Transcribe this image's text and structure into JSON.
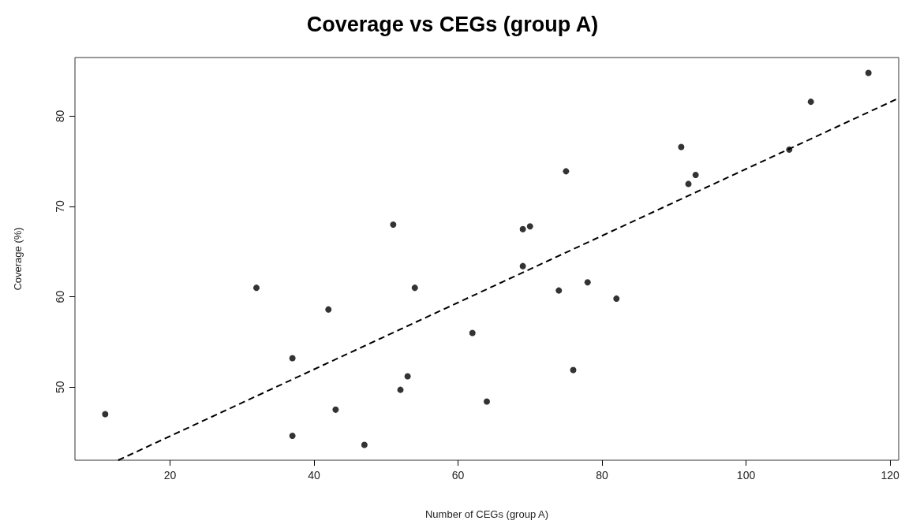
{
  "chart_data": {
    "type": "scatter",
    "title": "Coverage vs CEGs (group A)",
    "xlabel": "Number of CEGs (group A)",
    "ylabel": "Coverage (%)",
    "xlim": [
      6.8,
      121.2
    ],
    "ylim": [
      41.9,
      86.5
    ],
    "xticks": [
      20,
      40,
      60,
      80,
      100,
      120
    ],
    "yticks": [
      50,
      60,
      70,
      80
    ],
    "grid": false,
    "marker": "circle",
    "series": [
      {
        "color": "#000000",
        "x": [
          11,
          32,
          37,
          37,
          42,
          43,
          47,
          51,
          54,
          52,
          53,
          62,
          64,
          69,
          70,
          69,
          75,
          74,
          78,
          82,
          76,
          91,
          92,
          93,
          106,
          109,
          117
        ],
        "values": [
          47.0,
          61.0,
          53.2,
          44.6,
          58.6,
          47.5,
          43.6,
          68.0,
          61.0,
          49.7,
          51.2,
          56.0,
          48.4,
          67.5,
          67.8,
          63.4,
          73.9,
          60.7,
          61.6,
          59.8,
          51.9,
          76.6,
          72.5,
          73.5,
          76.3,
          81.6,
          84.8
        ]
      },
      {
        "type": "line",
        "color": "#000000",
        "line_style": "dashed",
        "marker": "none",
        "x": [
          12.8,
          121.2
        ],
        "values": [
          41.9,
          82.0
        ]
      }
    ]
  }
}
